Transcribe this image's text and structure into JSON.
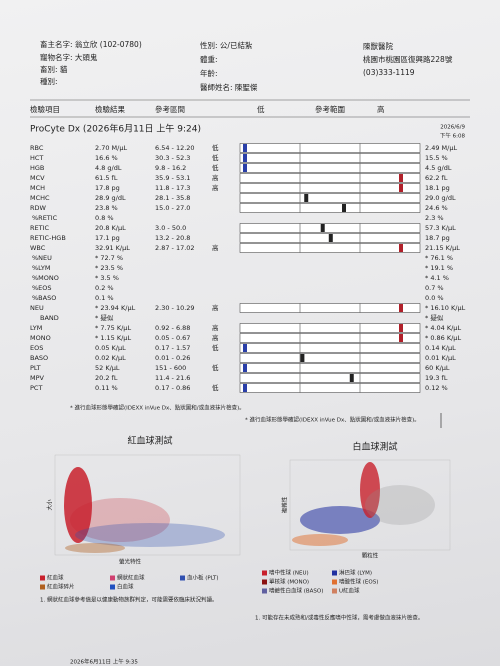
{
  "header": {
    "owner": "畜主名字: 翁立欣 (102-0780)",
    "pet": "寵物名字: 大頭鬼",
    "species": "畜別: 貓",
    "breed": "種別:",
    "sex": "性別: 公/已結紮",
    "weight": "體重:",
    "age": "年齡:",
    "doctor": "醫師姓名: 陳聖傑",
    "clinic": "陳獸醫院",
    "address": "桃園市桃園區復興路228號",
    "phone": "(03)333-1119"
  },
  "table": {
    "columns": [
      "檢驗項目",
      "檢驗結果",
      "參考區間",
      "低",
      "參考範圍",
      "高"
    ],
    "instrument": "ProCyte Dx (2026年6月11日 上午 9:24)",
    "previous_date": "2026/6/9",
    "previous_time": "下午 6:08",
    "rows": [
      [
        "RBC",
        "2.70 M/μL",
        "6.54 - 12.20",
        "低",
        "2.49 M/μL"
      ],
      [
        "HCT",
        "16.6 %",
        "30.3 - 52.3",
        "低",
        "15.5 %"
      ],
      [
        "HGB",
        "4.8 g/dL",
        "9.8 - 16.2",
        "低",
        "4.5 g/dL"
      ],
      [
        "MCV",
        "61.5 fL",
        "35.9 - 53.1",
        "高",
        "62.2 fL"
      ],
      [
        "MCH",
        "17.8 pg",
        "11.8 - 17.3",
        "高",
        "18.1 pg"
      ],
      [
        "MCHC",
        "28.9 g/dL",
        "28.1 - 35.8",
        null,
        "29.0 g/dL"
      ],
      [
        "RDW",
        "23.8 %",
        "15.0 - 27.0",
        null,
        "24.6 %"
      ],
      [
        "%RETIC",
        "0.8 %",
        null,
        null,
        "2.3 %"
      ],
      [
        "RETIC",
        "20.8 K/μL",
        "3.0 - 50.0",
        null,
        "57.3 K/μL"
      ],
      [
        "RETIC-HGB",
        "17.1 pg",
        "13.2 - 20.8",
        null,
        "18.7 pg"
      ],
      [
        "WBC",
        "32.91 K/μL",
        "2.87 - 17.02",
        "高",
        "21.15 K/μL"
      ],
      [
        "%NEU",
        "* 72.7 %",
        null,
        null,
        "* 76.1 %"
      ],
      [
        "%LYM",
        "* 23.5 %",
        null,
        null,
        "* 19.1 %"
      ],
      [
        "%MONO",
        "* 3.5 %",
        null,
        null,
        "* 4.1 %"
      ],
      [
        "%EOS",
        "0.2 %",
        null,
        null,
        "0.7 %"
      ],
      [
        "%BASO",
        "0.1 %",
        null,
        null,
        "0.0 %"
      ],
      [
        "NEU",
        "* 23.94 K/μL",
        "2.30 - 10.29",
        "高",
        "* 16.10 K/μL"
      ],
      [
        "BAND",
        "* 疑似",
        null,
        null,
        "* 疑似"
      ],
      [
        "LYM",
        "* 7.75 K/μL",
        "0.92 - 6.88",
        "高",
        "* 4.04 K/μL"
      ],
      [
        "MONO",
        "* 1.15 K/μL",
        "0.05 - 0.67",
        "高",
        "* 0.86 K/μL"
      ],
      [
        "EOS",
        "0.05 K/μL",
        "0.17 - 1.57",
        "低",
        "0.14 K/μL"
      ],
      [
        "BASO",
        "0.02 K/μL",
        "0.01 - 0.26",
        null,
        "0.01 K/μL"
      ],
      [
        "PLT",
        "52 K/μL",
        "151 - 600",
        "低",
        "60 K/μL"
      ],
      [
        "MPV",
        "20.2 fL",
        "11.4 - 21.6",
        null,
        "19.3 fL"
      ],
      [
        "PCT",
        "0.11 %",
        "0.17 - 0.86",
        "低",
        "0.12 %"
      ]
    ]
  },
  "footnote_current": "* 進行血球形態學確認(IDEXX inVue Dx、點狀圖和/或血液抹片檢查)。",
  "footnote_previous": "* 進行血球形態學確認(IDEXX inVue Dx、點狀圖和/或血液抹片檢查)。",
  "rbc_plot": {
    "title": "紅血球測試",
    "y_label": "大小",
    "x_label": "螢光特性",
    "legend": [
      "紅血球",
      "網狀紅血球",
      "血小板 (PLT)",
      "紅血球碎片",
      "白血球"
    ],
    "note": "1. 網狀紅血球參考值是以健康動物族群判定，可能需要依臨床狀況判讀。"
  },
  "wbc_plot": {
    "title": "白血球測試",
    "y_label": "複雜性",
    "x_label": "顆粒性",
    "legend": [
      "嗜中性球 (NEU)",
      "淋巴球 (LYM)",
      "單核球 (MONO)",
      "嗜酸性球 (EOS)",
      "嗜鹼性白血球 (BASO)",
      "U紅血球"
    ],
    "note": "1. 可能存在未成熟和/或毒性反應嗜中性球，需考慮做血液抹片檢查。"
  },
  "footer": "2026年6月11日 上午 9:35"
}
